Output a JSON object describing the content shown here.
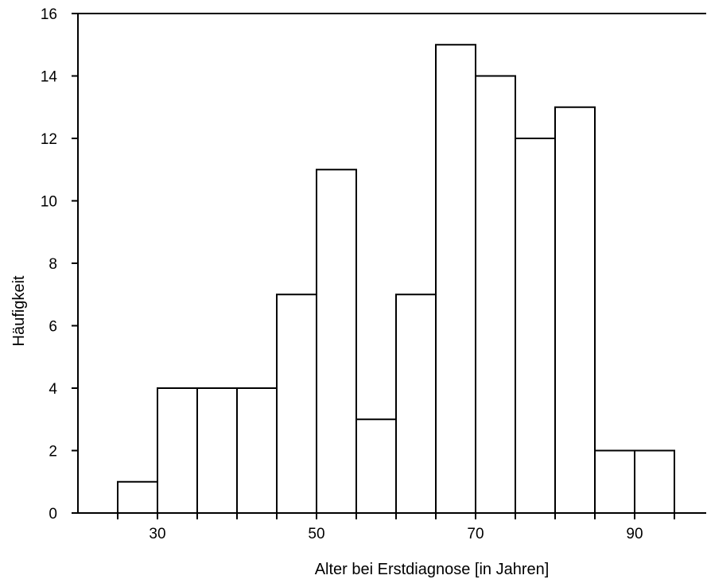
{
  "chart_data": {
    "type": "bar",
    "subtype": "histogram",
    "bin_width": 5,
    "bins": [
      {
        "start": 25,
        "end": 30,
        "value": 1
      },
      {
        "start": 30,
        "end": 35,
        "value": 4
      },
      {
        "start": 35,
        "end": 40,
        "value": 4
      },
      {
        "start": 40,
        "end": 45,
        "value": 4
      },
      {
        "start": 45,
        "end": 50,
        "value": 7
      },
      {
        "start": 50,
        "end": 55,
        "value": 11
      },
      {
        "start": 55,
        "end": 60,
        "value": 3
      },
      {
        "start": 60,
        "end": 65,
        "value": 7
      },
      {
        "start": 65,
        "end": 70,
        "value": 15
      },
      {
        "start": 70,
        "end": 75,
        "value": 14
      },
      {
        "start": 75,
        "end": 80,
        "value": 12
      },
      {
        "start": 80,
        "end": 85,
        "value": 13
      },
      {
        "start": 85,
        "end": 90,
        "value": 2
      },
      {
        "start": 90,
        "end": 95,
        "value": 2
      }
    ],
    "title": "",
    "xlabel": "Alter bei Erstdiagnose [in Jahren]",
    "ylabel": "Häufigkeit",
    "xlim": [
      20,
      99
    ],
    "ylim": [
      0,
      16
    ],
    "x_tick_labels": [
      "30",
      "50",
      "70",
      "90"
    ],
    "x_tick_values": [
      30,
      50,
      70,
      90
    ],
    "x_minor_tick_values": [
      20,
      30,
      40,
      50,
      60,
      70,
      80,
      90
    ],
    "y_tick_labels": [
      "0",
      "2",
      "4",
      "6",
      "8",
      "10",
      "12",
      "14",
      "16"
    ],
    "y_tick_values": [
      0,
      2,
      4,
      6,
      8,
      10,
      12,
      14,
      16
    ],
    "grid": false,
    "legend": "none",
    "colors": {
      "bar_fill": "#ffffff",
      "bar_stroke": "#000000",
      "axis": "#000000"
    }
  }
}
